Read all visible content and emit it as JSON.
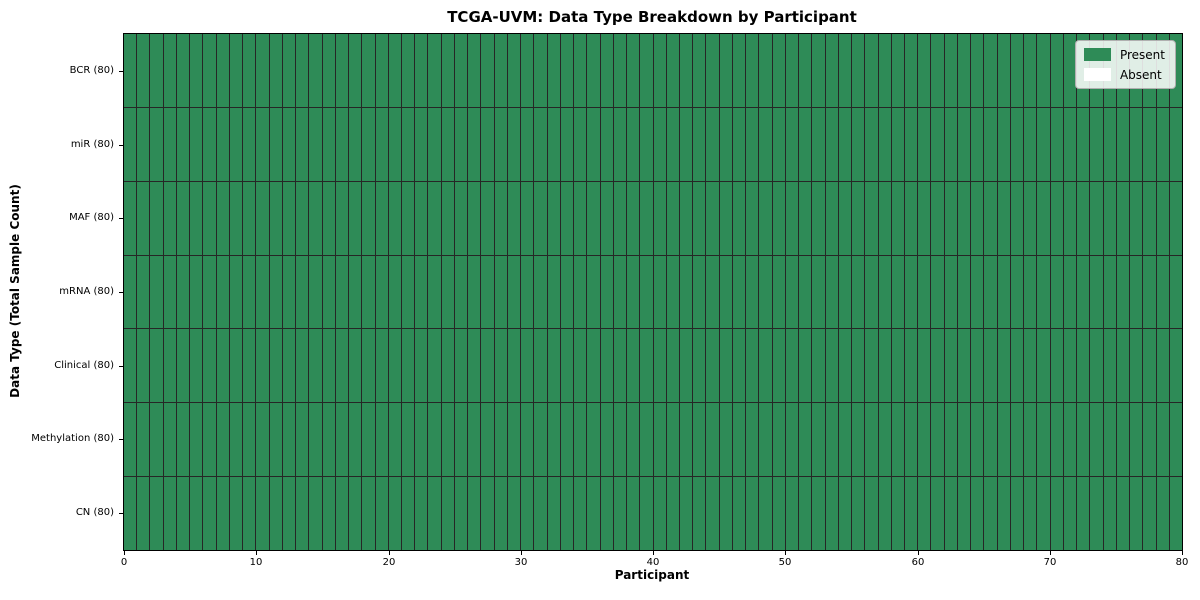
{
  "figure": {
    "title": "TCGA-UVM: Data Type Breakdown by Participant"
  },
  "chart_data": {
    "type": "heatmap",
    "title": "TCGA-UVM: Data Type Breakdown by Participant",
    "xlabel": "Participant",
    "ylabel": "Data Type (Total Sample Count)",
    "xlim": [
      0,
      80
    ],
    "x_ticks": [
      0,
      10,
      20,
      30,
      40,
      50,
      60,
      70,
      80
    ],
    "n_participants": 80,
    "grid": true,
    "rows": [
      {
        "label": "BCR (80)",
        "present": 80,
        "absent": 0
      },
      {
        "label": "miR (80)",
        "present": 80,
        "absent": 0
      },
      {
        "label": "MAF (80)",
        "present": 80,
        "absent": 0
      },
      {
        "label": "mRNA (80)",
        "present": 80,
        "absent": 0
      },
      {
        "label": "Clinical (80)",
        "present": 80,
        "absent": 0
      },
      {
        "label": "Methylation (80)",
        "present": 80,
        "absent": 0
      },
      {
        "label": "CN (80)",
        "present": 80,
        "absent": 0
      }
    ],
    "legend": {
      "position": "upper right",
      "entries": [
        {
          "label": "Present",
          "color": "#2e8b57"
        },
        {
          "label": "Absent",
          "color": "#ffffff"
        }
      ]
    },
    "colors": {
      "present": "#2e8b57",
      "absent": "#ffffff",
      "grid_line": "#262626",
      "axis": "#000000"
    }
  }
}
